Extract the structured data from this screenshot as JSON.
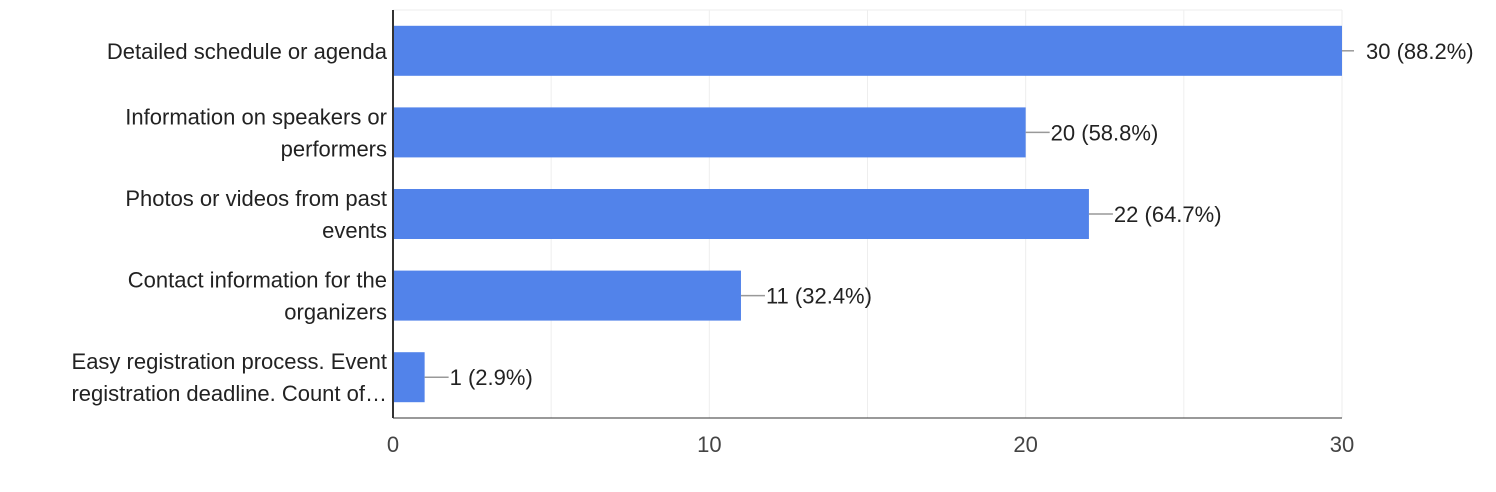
{
  "chart_data": {
    "type": "bar",
    "orientation": "horizontal",
    "categories": [
      [
        "Detailed schedule or agenda"
      ],
      [
        "Information on speakers or",
        "performers"
      ],
      [
        "Photos or videos from past",
        "events"
      ],
      [
        "Contact information for the",
        "organizers"
      ],
      [
        "Easy registration process. Event",
        "registration deadline. Count of…"
      ]
    ],
    "values": [
      30,
      20,
      22,
      11,
      1
    ],
    "data_labels": [
      "30 (88.2%)",
      "20 (58.8%)",
      "22 (64.7%)",
      "11 (32.4%)",
      "1 (2.9%)"
    ],
    "x_ticks": [
      0,
      10,
      20,
      30
    ],
    "xlim": [
      0,
      30
    ],
    "grid": true,
    "legend": "none",
    "colors": {
      "bar": "#5283ea",
      "grid": "#eeeeee",
      "axis": "#333333",
      "leader": "#999999"
    }
  }
}
